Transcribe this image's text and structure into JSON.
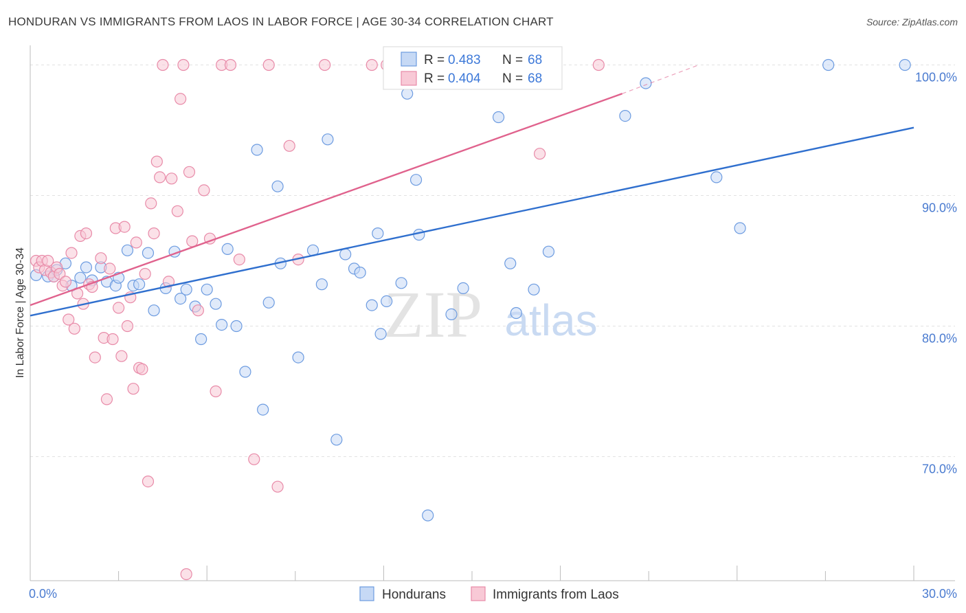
{
  "title": "HONDURAN VS IMMIGRANTS FROM LAOS IN LABOR FORCE | AGE 30-34 CORRELATION CHART",
  "source": "Source: ZipAtlas.com",
  "watermark": {
    "zip": "ZIP",
    "atlas": "atlas"
  },
  "chart_data": {
    "type": "scatter",
    "title": "HONDURAN VS IMMIGRANTS FROM LAOS IN LABOR FORCE | AGE 30-34 CORRELATION CHART",
    "xlabel": "",
    "ylabel": "In Labor Force | Age 30-34",
    "xlim": [
      0,
      30
    ],
    "ylim": [
      60.5,
      101.5
    ],
    "x_tick_labels": [
      {
        "v": 0,
        "label": "0.0%"
      },
      {
        "v": 30,
        "label": "30.0%"
      }
    ],
    "y_tick_labels": [
      {
        "v": 100,
        "label": "100.0%"
      },
      {
        "v": 90,
        "label": "90.0%"
      },
      {
        "v": 80,
        "label": "80.0%"
      },
      {
        "v": 70,
        "label": "70.0%"
      }
    ],
    "legend": {
      "placement": "top-center",
      "entries": [
        {
          "r_label": "R =",
          "r_value": "0.483",
          "n_label": "N =",
          "n_value": "68"
        },
        {
          "r_label": "R =",
          "r_value": "0.404",
          "n_label": "N =",
          "n_value": "68"
        }
      ]
    },
    "series": [
      {
        "name": "Hondurans",
        "color": "#6c9be0",
        "fill": "#c6d9f5",
        "trend": {
          "x0": 0,
          "y0": 80.8,
          "x1": 30,
          "y1": 95.2,
          "color": "#2f6fce"
        },
        "points": [
          [
            0.2,
            83.9
          ],
          [
            0.6,
            83.8
          ],
          [
            0.8,
            83.8
          ],
          [
            0.9,
            84.3
          ],
          [
            1.2,
            84.8
          ],
          [
            1.4,
            83.1
          ],
          [
            1.7,
            83.7
          ],
          [
            1.9,
            84.5
          ],
          [
            2.1,
            83.5
          ],
          [
            2.4,
            84.5
          ],
          [
            2.6,
            83.4
          ],
          [
            2.9,
            83.1
          ],
          [
            3.0,
            83.7
          ],
          [
            3.3,
            85.8
          ],
          [
            3.5,
            83.1
          ],
          [
            3.7,
            83.2
          ],
          [
            4.0,
            85.6
          ],
          [
            4.2,
            81.2
          ],
          [
            4.6,
            82.9
          ],
          [
            4.9,
            85.7
          ],
          [
            5.1,
            82.1
          ],
          [
            5.3,
            82.8
          ],
          [
            5.6,
            81.5
          ],
          [
            5.8,
            79.0
          ],
          [
            6.0,
            82.8
          ],
          [
            6.3,
            81.7
          ],
          [
            6.5,
            80.1
          ],
          [
            6.7,
            85.9
          ],
          [
            7.0,
            80.0
          ],
          [
            7.3,
            76.5
          ],
          [
            7.7,
            93.5
          ],
          [
            7.9,
            73.6
          ],
          [
            8.1,
            81.8
          ],
          [
            8.5,
            84.8
          ],
          [
            8.4,
            90.7
          ],
          [
            9.1,
            77.6
          ],
          [
            9.6,
            85.8
          ],
          [
            9.9,
            83.2
          ],
          [
            10.1,
            94.3
          ],
          [
            10.4,
            71.3
          ],
          [
            10.7,
            85.5
          ],
          [
            11.0,
            84.4
          ],
          [
            11.2,
            84.1
          ],
          [
            11.6,
            81.6
          ],
          [
            11.8,
            87.1
          ],
          [
            11.9,
            79.4
          ],
          [
            12.1,
            81.9
          ],
          [
            12.6,
            83.3
          ],
          [
            12.8,
            97.8
          ],
          [
            13.1,
            91.2
          ],
          [
            13.2,
            87.0
          ],
          [
            13.5,
            65.5
          ],
          [
            14.3,
            80.9
          ],
          [
            14.7,
            82.9
          ],
          [
            14.9,
            100.0
          ],
          [
            15.7,
            100.0
          ],
          [
            15.9,
            96.0
          ],
          [
            16.1,
            99.3
          ],
          [
            16.3,
            84.8
          ],
          [
            16.5,
            81.0
          ],
          [
            17.1,
            82.8
          ],
          [
            17.6,
            85.7
          ],
          [
            20.2,
            96.1
          ],
          [
            20.9,
            98.6
          ],
          [
            23.3,
            91.4
          ],
          [
            24.1,
            87.5
          ],
          [
            27.1,
            100.0
          ],
          [
            29.7,
            100.0
          ]
        ]
      },
      {
        "name": "Immigrants from Laos",
        "color": "#e88aa8",
        "fill": "#f8c9d6",
        "trend": {
          "x0": 0,
          "y0": 81.6,
          "x1": 20.1,
          "y1": 97.8,
          "color": "#e0628d",
          "dash_to": {
            "x": 22.7,
            "y": 100.0
          }
        },
        "points": [
          [
            0.2,
            85.0
          ],
          [
            0.3,
            84.5
          ],
          [
            0.4,
            85.0
          ],
          [
            0.5,
            84.3
          ],
          [
            0.6,
            85.0
          ],
          [
            0.7,
            84.1
          ],
          [
            0.8,
            83.8
          ],
          [
            0.9,
            84.5
          ],
          [
            1.0,
            84.0
          ],
          [
            1.1,
            83.1
          ],
          [
            1.2,
            83.4
          ],
          [
            1.3,
            80.5
          ],
          [
            1.4,
            85.6
          ],
          [
            1.5,
            79.8
          ],
          [
            1.6,
            82.5
          ],
          [
            1.7,
            86.9
          ],
          [
            1.8,
            81.7
          ],
          [
            1.9,
            87.1
          ],
          [
            2.0,
            83.2
          ],
          [
            2.1,
            83.0
          ],
          [
            2.2,
            77.6
          ],
          [
            2.4,
            85.2
          ],
          [
            2.5,
            79.1
          ],
          [
            2.6,
            74.4
          ],
          [
            2.7,
            84.4
          ],
          [
            2.8,
            79.0
          ],
          [
            2.9,
            87.5
          ],
          [
            3.0,
            81.4
          ],
          [
            3.1,
            77.7
          ],
          [
            3.2,
            87.6
          ],
          [
            3.3,
            80.0
          ],
          [
            3.4,
            82.2
          ],
          [
            3.5,
            75.2
          ],
          [
            3.6,
            86.4
          ],
          [
            3.7,
            76.8
          ],
          [
            3.8,
            76.7
          ],
          [
            3.9,
            84.0
          ],
          [
            4.0,
            68.1
          ],
          [
            4.1,
            89.4
          ],
          [
            4.2,
            87.1
          ],
          [
            4.3,
            92.6
          ],
          [
            4.4,
            91.4
          ],
          [
            4.5,
            100.0
          ],
          [
            4.7,
            83.4
          ],
          [
            4.8,
            91.3
          ],
          [
            5.0,
            88.8
          ],
          [
            5.1,
            97.4
          ],
          [
            5.2,
            100.0
          ],
          [
            5.3,
            61.0
          ],
          [
            5.4,
            91.8
          ],
          [
            5.5,
            86.5
          ],
          [
            5.7,
            81.2
          ],
          [
            5.9,
            90.4
          ],
          [
            6.1,
            86.7
          ],
          [
            6.3,
            75.0
          ],
          [
            6.5,
            100.0
          ],
          [
            6.8,
            100.0
          ],
          [
            7.1,
            85.1
          ],
          [
            7.6,
            69.8
          ],
          [
            8.1,
            100.0
          ],
          [
            8.4,
            67.7
          ],
          [
            8.8,
            93.8
          ],
          [
            9.1,
            85.1
          ],
          [
            10.0,
            100.0
          ],
          [
            11.6,
            100.0
          ],
          [
            12.1,
            100.0
          ],
          [
            17.3,
            93.2
          ],
          [
            19.3,
            100.0
          ]
        ]
      }
    ]
  }
}
